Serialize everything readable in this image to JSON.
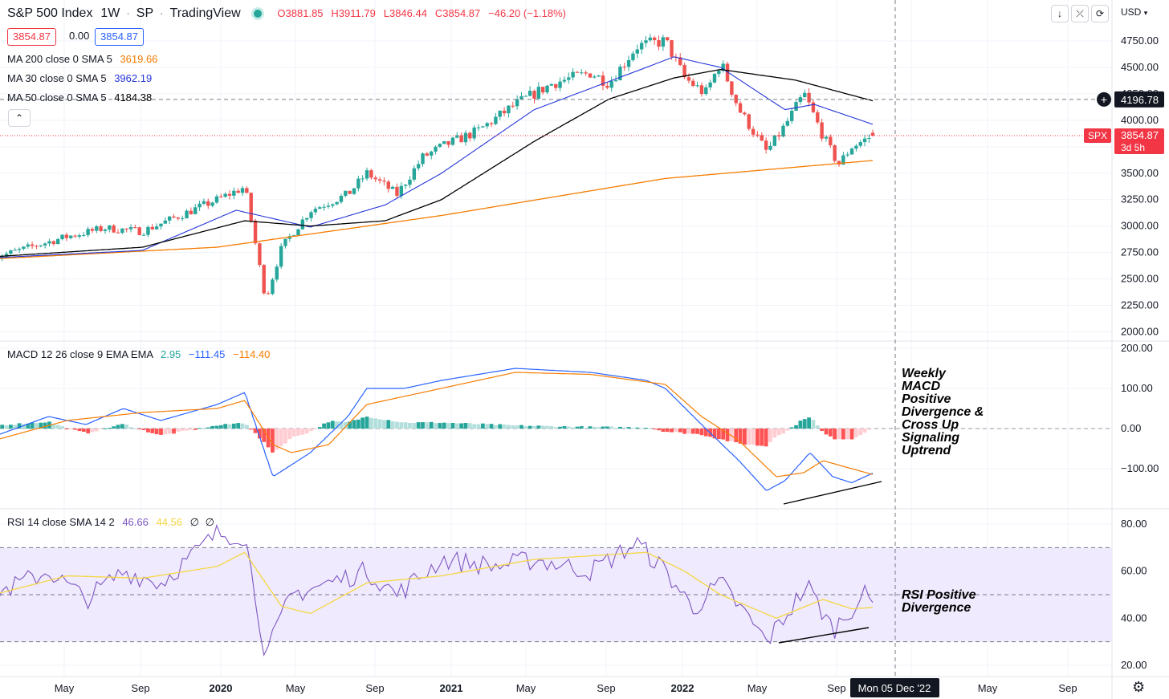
{
  "header": {
    "title": "S&P 500 Index",
    "interval": "1W",
    "exchange": "SP",
    "source": "TradingView",
    "ohlc": {
      "o": "O3881.85",
      "h": "H3911.79",
      "l": "L3846.44",
      "c": "C3854.87",
      "change": "−46.20 (−1.18%)"
    },
    "bid": "3854.87",
    "spread": "0.00",
    "ask": "3854.87",
    "currency": "USD"
  },
  "indicators": {
    "ma200": {
      "label": "MA 200 close 0 SMA 5",
      "value": "3619.66",
      "color": "#f57c00"
    },
    "ma30": {
      "label": "MA 30 close 0 SMA 5",
      "value": "3962.19",
      "color": "#2636d9"
    },
    "ma50": {
      "label": "MA 50 close 0 SMA 5",
      "value": "4184.38",
      "color": "#000000"
    },
    "macd": {
      "label": "MACD 12 26 close 9 EMA EMA",
      "hist": "2.95",
      "macd": "−111.45",
      "signal": "−114.40"
    },
    "rsi": {
      "label": "RSI 14 close SMA 14 2",
      "rsi": "46.66",
      "sma": "44.56",
      "extra1": "∅",
      "extra2": "∅"
    }
  },
  "price_labels": {
    "crosshair": "4196.78",
    "symbol": "SPX",
    "last": "3854.87",
    "countdown": "3d 5h"
  },
  "time_axis": {
    "labels": [
      "May",
      "Sep",
      "2020",
      "May",
      "Sep",
      "2021",
      "May",
      "Sep",
      "2022",
      "May",
      "Sep",
      "May",
      "Sep"
    ],
    "crosshair_date": "Mon 05 Dec '22"
  },
  "annotations": {
    "macd_note": "Weekly\nMACD\nPositive\nDivergence &\nCross Up\nSignaling\nUptrend",
    "rsi_note": "RSI Positive\nDivergence"
  },
  "colors": {
    "up": "#26a69a",
    "down": "#ef5350",
    "grid": "#f0f3fa",
    "rsi_band": "#efeafd"
  },
  "chart_data": [
    {
      "type": "candlestick",
      "title": "S&P 500 Index",
      "timeframe": "weekly",
      "ylim": [
        1900,
        4900
      ],
      "yticks": [
        "2000.00",
        "2250.00",
        "2500.00",
        "2750.00",
        "3000.00",
        "3250.00",
        "3500.00",
        "3750.00",
        "4000.00",
        "4250.00",
        "4500.00",
        "4750.00"
      ],
      "close_path": [
        [
          "2019-01-01",
          2700
        ],
        [
          "2019-03-01",
          2800
        ],
        [
          "2019-05-01",
          2900
        ],
        [
          "2019-07-01",
          2980
        ],
        [
          "2019-09-01",
          2950
        ],
        [
          "2019-11-01",
          3100
        ],
        [
          "2020-01-01",
          3250
        ],
        [
          "2020-02-15",
          3370
        ],
        [
          "2020-03-20",
          2300
        ],
        [
          "2020-04-15",
          2800
        ],
        [
          "2020-06-01",
          3150
        ],
        [
          "2020-08-01",
          3300
        ],
        [
          "2020-09-01",
          3500
        ],
        [
          "2020-10-20",
          3300
        ],
        [
          "2020-12-01",
          3650
        ],
        [
          "2021-01-01",
          3750
        ],
        [
          "2021-03-01",
          3900
        ],
        [
          "2021-05-01",
          4150
        ],
        [
          "2021-07-01",
          4350
        ],
        [
          "2021-09-01",
          4450
        ],
        [
          "2021-10-01",
          4350
        ],
        [
          "2021-11-15",
          4700
        ],
        [
          "2022-01-01",
          4750
        ],
        [
          "2022-02-01",
          4400
        ],
        [
          "2022-03-07",
          4250
        ],
        [
          "2022-04-01",
          4550
        ],
        [
          "2022-05-01",
          4100
        ],
        [
          "2022-06-15",
          3700
        ],
        [
          "2022-07-15",
          3950
        ],
        [
          "2022-08-15",
          4250
        ],
        [
          "2022-09-15",
          3850
        ],
        [
          "2022-10-10",
          3580
        ],
        [
          "2022-11-01",
          3750
        ],
        [
          "2022-12-05",
          3854.87
        ]
      ],
      "last_candle": {
        "date": "2022-12-05",
        "open": 3881.85,
        "high": 3911.79,
        "low": 3846.44,
        "close": 3854.87
      },
      "ma200_path": [
        [
          "2019-01-01",
          2690
        ],
        [
          "2020-01-01",
          2800
        ],
        [
          "2021-01-01",
          3100
        ],
        [
          "2022-01-01",
          3450
        ],
        [
          "2022-12-05",
          3619.66
        ]
      ],
      "ma30_path": [
        [
          "2019-01-01",
          2700
        ],
        [
          "2019-09-01",
          2770
        ],
        [
          "2020-02-01",
          3150
        ],
        [
          "2020-06-01",
          2990
        ],
        [
          "2020-10-01",
          3200
        ],
        [
          "2021-01-01",
          3500
        ],
        [
          "2021-06-01",
          4100
        ],
        [
          "2021-12-01",
          4500
        ],
        [
          "2022-01-15",
          4600
        ],
        [
          "2022-04-01",
          4500
        ],
        [
          "2022-07-15",
          4100
        ],
        [
          "2022-09-01",
          4150
        ],
        [
          "2022-12-05",
          3962.19
        ]
      ],
      "ma50_path": [
        [
          "2019-01-01",
          2710
        ],
        [
          "2019-09-01",
          2800
        ],
        [
          "2020-02-15",
          3050
        ],
        [
          "2020-06-01",
          3000
        ],
        [
          "2020-10-01",
          3050
        ],
        [
          "2021-01-01",
          3250
        ],
        [
          "2021-06-01",
          3800
        ],
        [
          "2021-10-01",
          4200
        ],
        [
          "2022-01-15",
          4400
        ],
        [
          "2022-04-01",
          4480
        ],
        [
          "2022-08-01",
          4380
        ],
        [
          "2022-12-05",
          4184.38
        ]
      ]
    },
    {
      "type": "line",
      "title": "MACD 12 26 close 9 EMA EMA",
      "ylim": [
        -200,
        200
      ],
      "yticks": [
        "200.00",
        "100.00",
        "0.00",
        "−100.00"
      ],
      "macd_path": [
        [
          "2019-01-01",
          -20
        ],
        [
          "2019-04-01",
          30
        ],
        [
          "2019-06-01",
          10
        ],
        [
          "2019-08-01",
          50
        ],
        [
          "2019-10-01",
          20
        ],
        [
          "2020-01-01",
          60
        ],
        [
          "2020-02-15",
          90
        ],
        [
          "2020-04-01",
          -120
        ],
        [
          "2020-06-01",
          -60
        ],
        [
          "2020-08-01",
          30
        ],
        [
          "2020-09-01",
          100
        ],
        [
          "2020-11-01",
          100
        ],
        [
          "2021-01-01",
          120
        ],
        [
          "2021-05-01",
          150
        ],
        [
          "2021-09-01",
          140
        ],
        [
          "2021-12-01",
          120
        ],
        [
          "2022-01-01",
          100
        ],
        [
          "2022-03-01",
          10
        ],
        [
          "2022-05-01",
          -80
        ],
        [
          "2022-06-15",
          -155
        ],
        [
          "2022-07-15",
          -130
        ],
        [
          "2022-08-25",
          -60
        ],
        [
          "2022-10-01",
          -120
        ],
        [
          "2022-11-01",
          -135
        ],
        [
          "2022-12-05",
          -111.45
        ]
      ],
      "signal_path": [
        [
          "2019-01-01",
          -30
        ],
        [
          "2019-05-01",
          20
        ],
        [
          "2019-09-01",
          40
        ],
        [
          "2020-01-01",
          50
        ],
        [
          "2020-02-15",
          70
        ],
        [
          "2020-04-01",
          -40
        ],
        [
          "2020-05-01",
          -60
        ],
        [
          "2020-07-01",
          -40
        ],
        [
          "2020-09-01",
          60
        ],
        [
          "2020-12-01",
          90
        ],
        [
          "2021-05-01",
          140
        ],
        [
          "2021-09-01",
          135
        ],
        [
          "2022-01-01",
          110
        ],
        [
          "2022-03-01",
          30
        ],
        [
          "2022-05-01",
          -30
        ],
        [
          "2022-07-01",
          -120
        ],
        [
          "2022-08-15",
          -110
        ],
        [
          "2022-09-15",
          -80
        ],
        [
          "2022-11-01",
          -100
        ],
        [
          "2022-12-05",
          -114.4
        ]
      ],
      "histogram_last": 2.95
    },
    {
      "type": "line",
      "title": "RSI 14 close SMA 14 2",
      "ylim": [
        15,
        85
      ],
      "yticks": [
        "80.00",
        "60.00",
        "40.00",
        "20.00"
      ],
      "bands": [
        30,
        50,
        70
      ],
      "rsi_path": [
        [
          "2019-01-01",
          50
        ],
        [
          "2019-04-01",
          60
        ],
        [
          "2019-06-01",
          48
        ],
        [
          "2019-08-01",
          60
        ],
        [
          "2019-10-01",
          55
        ],
        [
          "2020-01-01",
          76
        ],
        [
          "2020-02-15",
          75
        ],
        [
          "2020-03-20",
          24
        ],
        [
          "2020-05-01",
          50
        ],
        [
          "2020-07-01",
          55
        ],
        [
          "2020-09-01",
          60
        ],
        [
          "2020-10-20",
          50
        ],
        [
          "2021-01-01",
          65
        ],
        [
          "2021-04-01",
          62
        ],
        [
          "2021-06-01",
          65
        ],
        [
          "2021-09-01",
          60
        ],
        [
          "2021-11-15",
          72
        ],
        [
          "2022-01-01",
          60
        ],
        [
          "2022-02-15",
          44
        ],
        [
          "2022-04-01",
          55
        ],
        [
          "2022-06-15",
          30
        ],
        [
          "2022-08-20",
          54
        ],
        [
          "2022-10-01",
          35
        ],
        [
          "2022-11-20",
          50
        ],
        [
          "2022-12-05",
          46.66
        ]
      ],
      "sma_path": [
        [
          "2019-01-01",
          50
        ],
        [
          "2019-05-01",
          58
        ],
        [
          "2019-09-01",
          57
        ],
        [
          "2020-01-01",
          62
        ],
        [
          "2020-02-15",
          68
        ],
        [
          "2020-04-15",
          45
        ],
        [
          "2020-06-01",
          42
        ],
        [
          "2020-09-01",
          55
        ],
        [
          "2021-01-01",
          58
        ],
        [
          "2021-06-01",
          65
        ],
        [
          "2021-12-01",
          68
        ],
        [
          "2022-02-01",
          60
        ],
        [
          "2022-04-01",
          50
        ],
        [
          "2022-07-01",
          40
        ],
        [
          "2022-09-15",
          48
        ],
        [
          "2022-11-01",
          44
        ],
        [
          "2022-12-05",
          44.56
        ]
      ]
    }
  ]
}
